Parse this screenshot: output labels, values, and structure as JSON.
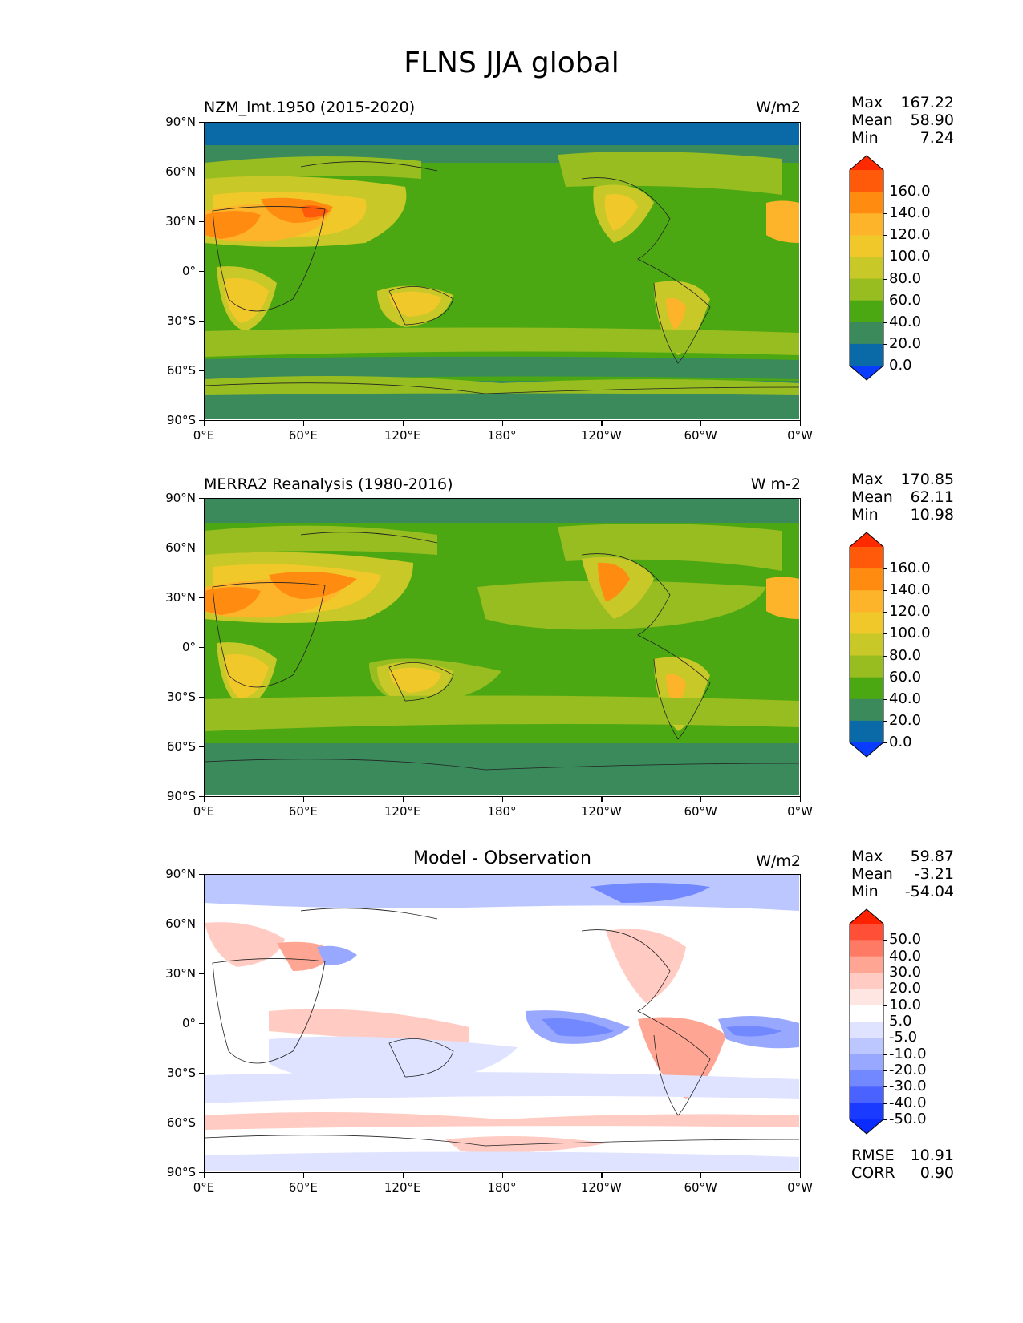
{
  "title": "FLNS JJA global",
  "lat_labels": [
    "90°N",
    "60°N",
    "30°N",
    "0°",
    "30°S",
    "60°S",
    "90°S"
  ],
  "lon_labels": [
    "0°E",
    "60°E",
    "120°E",
    "180°",
    "120°W",
    "60°W",
    "0°W"
  ],
  "panels": [
    {
      "title": "NZM_lmt.1950 (2015-2020)",
      "units": "W/m2",
      "stats": {
        "max_label": "Max",
        "max": "167.22",
        "mean_label": "Mean",
        "mean": "58.90",
        "min_label": "Min",
        "min": "7.24"
      },
      "colorbar": {
        "labels": [
          "160.0",
          "140.0",
          "120.0",
          "100.0",
          "80.0",
          "60.0",
          "40.0",
          "20.0",
          "0.0"
        ],
        "colors": [
          "#ff2a00",
          "#ff5a0a",
          "#ff8c10",
          "#fdb32a",
          "#f0c82a",
          "#c8c828",
          "#98bd20",
          "#4ca812",
          "#3a8a5c",
          "#0a6aa8",
          "#0a3cff"
        ]
      }
    },
    {
      "title": "MERRA2 Reanalysis (1980-2016)",
      "units": "W m-2",
      "stats": {
        "max_label": "Max",
        "max": "170.85",
        "mean_label": "Mean",
        "mean": "62.11",
        "min_label": "Min",
        "min": "10.98"
      },
      "colorbar": {
        "labels": [
          "160.0",
          "140.0",
          "120.0",
          "100.0",
          "80.0",
          "60.0",
          "40.0",
          "20.0",
          "0.0"
        ],
        "colors": [
          "#ff2a00",
          "#ff5a0a",
          "#ff8c10",
          "#fdb32a",
          "#f0c82a",
          "#c8c828",
          "#98bd20",
          "#4ca812",
          "#3a8a5c",
          "#0a6aa8",
          "#0a3cff"
        ]
      }
    },
    {
      "title": "Model - Observation",
      "units": "W/m2",
      "stats": {
        "max_label": "Max",
        "max": "59.87",
        "mean_label": "Mean",
        "mean": "-3.21",
        "min_label": "Min",
        "min": "-54.04"
      },
      "colorbar": {
        "labels": [
          "50.0",
          "40.0",
          "30.0",
          "20.0",
          "10.0",
          "5.0",
          "-5.0",
          "-10.0",
          "-20.0",
          "-30.0",
          "-40.0",
          "-50.0"
        ],
        "colors": [
          "#ff2200",
          "#ff4f36",
          "#ff7a64",
          "#ffa594",
          "#ffcbc2",
          "#ffe6e2",
          "#ffffff",
          "#dfe3ff",
          "#bcc6ff",
          "#98a8ff",
          "#7288ff",
          "#4a62ff",
          "#1a3aff",
          "#0a2cff"
        ]
      },
      "rmse_label": "RMSE",
      "rmse": "10.91",
      "corr_label": "CORR",
      "corr": "0.90"
    }
  ],
  "colors": {
    "mean_field": {
      "ocean_low": "#4ca812",
      "ocean_mid": "#98bd20",
      "polar": "#3a8a5c",
      "arctic": "#0a6aa8",
      "desert": "#fdb32a",
      "desert_hot": "#ff8c10",
      "desert_core": "#ff5a0a",
      "land_warm": "#f0c82a",
      "land_mild": "#c8c828"
    },
    "diff_field": {
      "bg": "#ffffff",
      "pos1": "#ffcbc2",
      "pos2": "#ffa594",
      "pos3": "#ff7a64",
      "neg1": "#dfe3ff",
      "neg2": "#bcc6ff",
      "neg3": "#98a8ff",
      "neg4": "#7288ff"
    }
  }
}
